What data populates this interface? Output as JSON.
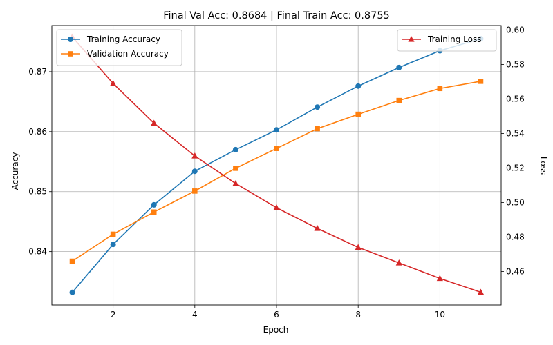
{
  "chart_data": {
    "type": "line",
    "title": "Final Val Acc: 0.8684 | Final Train Acc: 0.8755",
    "xlabel": "Epoch",
    "ylabel": "Accuracy",
    "y2label": "Loss",
    "x": [
      1,
      2,
      3,
      4,
      5,
      6,
      7,
      8,
      9,
      10,
      11
    ],
    "xlim": [
      0.5,
      11.5
    ],
    "ylim": [
      0.8311,
      0.8777
    ],
    "y2lim": [
      0.4406,
      0.6026
    ],
    "xticks": [
      2,
      4,
      6,
      8,
      10
    ],
    "yticks": [
      0.84,
      0.85,
      0.86,
      0.87
    ],
    "y2ticks": [
      0.46,
      0.48,
      0.5,
      0.52,
      0.54,
      0.56,
      0.58,
      0.6
    ],
    "grid": true,
    "series": [
      {
        "name": "Training Accuracy",
        "axis": "left",
        "color": "#1f77b4",
        "marker": "circle",
        "values": [
          0.8332,
          0.8412,
          0.8478,
          0.8534,
          0.857,
          0.8603,
          0.8641,
          0.8676,
          0.8707,
          0.8735,
          0.8755
        ]
      },
      {
        "name": "Validation Accuracy",
        "axis": "left",
        "color": "#ff7f0e",
        "marker": "square",
        "values": [
          0.8384,
          0.8429,
          0.8466,
          0.8501,
          0.8539,
          0.8572,
          0.8605,
          0.8629,
          0.8652,
          0.8672,
          0.8684
        ]
      },
      {
        "name": "Training Loss",
        "axis": "right",
        "color": "#d62728",
        "marker": "triangle",
        "values": [
          0.596,
          0.569,
          0.546,
          0.527,
          0.511,
          0.497,
          0.485,
          0.474,
          0.465,
          0.456,
          0.448
        ]
      }
    ],
    "legends": [
      {
        "placement": "top-left",
        "entries": [
          "Training Accuracy",
          "Validation Accuracy"
        ]
      },
      {
        "placement": "top-right",
        "entries": [
          "Training Loss"
        ]
      }
    ]
  }
}
